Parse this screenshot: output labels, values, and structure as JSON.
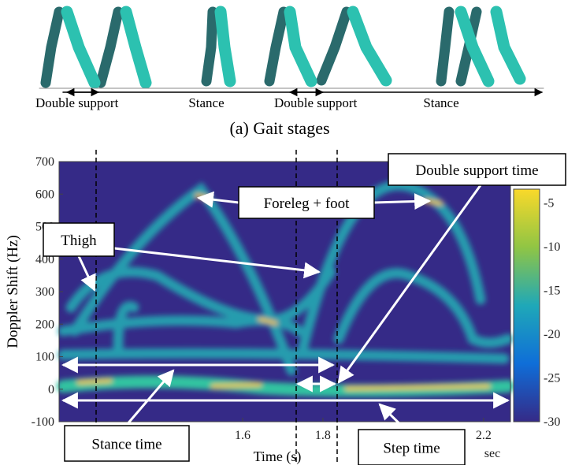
{
  "gait": {
    "labels": [
      "Double support",
      "Stance",
      "Double support",
      "Stance"
    ],
    "caption": "(a) Gait stages"
  },
  "spectrogram": {
    "ylabel": "Doppler Shift (Hz)",
    "xlabel": "Time (s)",
    "x_unit": "sec",
    "ylim": [
      -100,
      700
    ],
    "yticks": [
      700,
      600,
      500,
      400,
      300,
      200,
      100,
      0,
      -100
    ],
    "xlim": [
      1.143,
      2.267
    ],
    "xticks": [
      1.6,
      1.8,
      2.2
    ],
    "clim": [
      -30,
      -3.4
    ],
    "cticks": [
      -5,
      -10,
      -15,
      -20,
      -25,
      -30
    ]
  },
  "annotations": [
    "Double support time",
    "Foreleg + foot",
    "Thigh",
    "Stance time",
    "Step time"
  ]
}
